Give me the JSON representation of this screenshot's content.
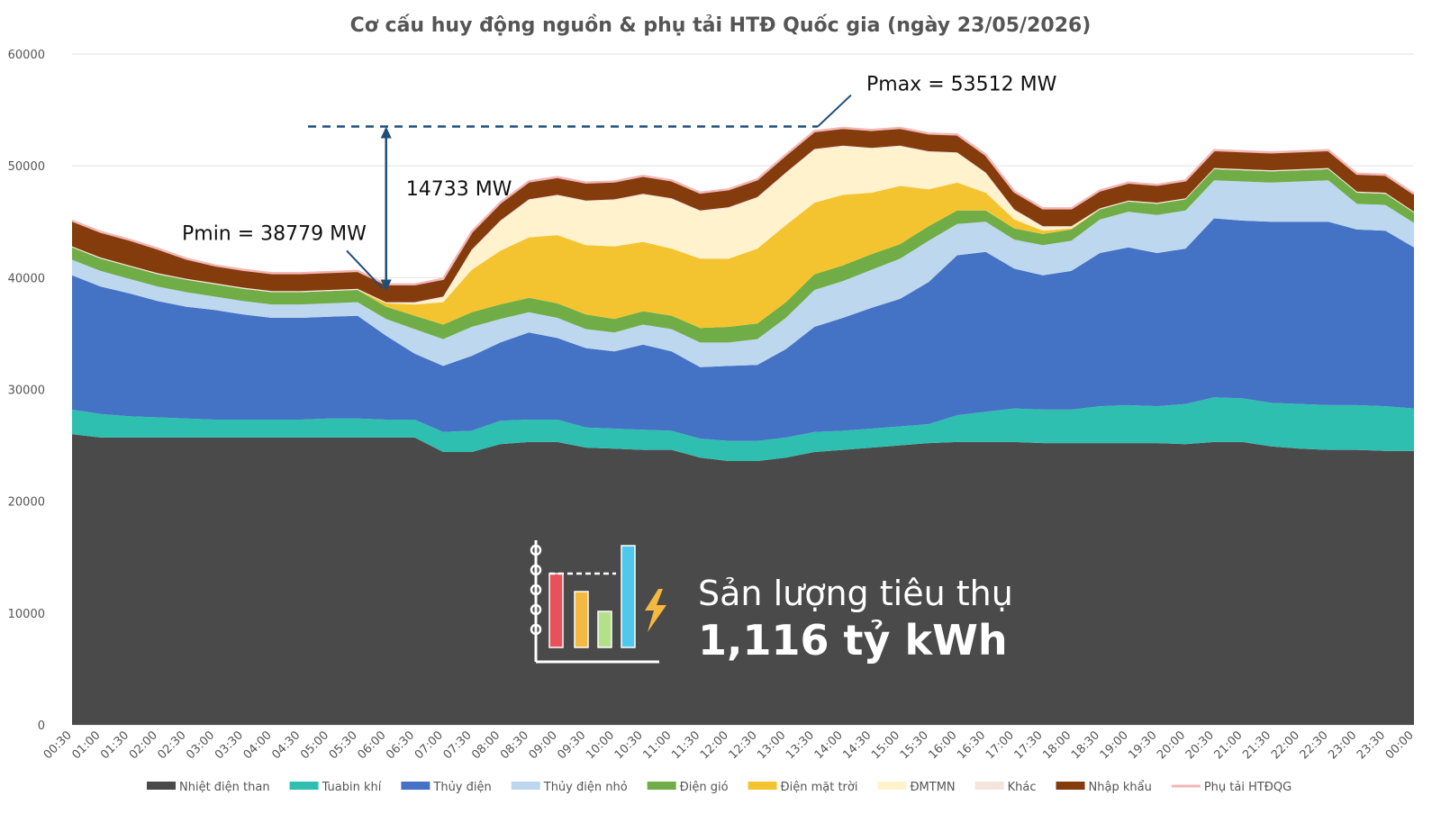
{
  "chart_data": {
    "type": "area",
    "stacked": true,
    "title": "Cơ cấu huy động nguồn & phụ tải HTĐ Quốc gia (ngày 23/05/2026)",
    "xlabel": "",
    "ylabel": "",
    "ylim": [
      0,
      60000
    ],
    "yticks": [
      0,
      10000,
      20000,
      30000,
      40000,
      50000,
      60000
    ],
    "grid": true,
    "legend_position": "bottom",
    "x": [
      "00:30",
      "01:00",
      "01:30",
      "02:00",
      "02:30",
      "03:00",
      "03:30",
      "04:00",
      "04:30",
      "05:00",
      "05:30",
      "06:00",
      "06:30",
      "07:00",
      "07:30",
      "08:00",
      "08:30",
      "09:00",
      "09:30",
      "10:00",
      "10:30",
      "11:00",
      "11:30",
      "12:00",
      "12:30",
      "13:00",
      "13:30",
      "14:00",
      "14:30",
      "15:00",
      "15:30",
      "16:00",
      "16:30",
      "17:00",
      "17:30",
      "18:00",
      "18:30",
      "19:00",
      "19:30",
      "20:00",
      "20:30",
      "21:00",
      "21:30",
      "22:00",
      "22:30",
      "23:00",
      "23:30",
      "00:00"
    ],
    "series": [
      {
        "name": "Nhiệt điện than",
        "color": "#4a4a4a",
        "values": [
          26000,
          25700,
          25700,
          25700,
          25700,
          25700,
          25700,
          25700,
          25700,
          25700,
          25700,
          25700,
          25700,
          24400,
          24400,
          25100,
          25300,
          25300,
          24800,
          24700,
          24600,
          24600,
          23900,
          23600,
          23600,
          23900,
          24400,
          24600,
          24800,
          25000,
          25200,
          25300,
          25300,
          25300,
          25200,
          25200,
          25200,
          25200,
          25200,
          25100,
          25300,
          25300,
          24900,
          24700,
          24600,
          24600,
          24500,
          24500
        ]
      },
      {
        "name": "Tuabin khí",
        "color": "#2fbfb1",
        "values": [
          2200,
          2100,
          1900,
          1800,
          1700,
          1600,
          1600,
          1600,
          1600,
          1700,
          1700,
          1600,
          1600,
          1800,
          1900,
          2100,
          2000,
          2000,
          1800,
          1800,
          1800,
          1700,
          1700,
          1800,
          1800,
          1800,
          1800,
          1700,
          1700,
          1700,
          1700,
          2400,
          2700,
          3000,
          3000,
          3000,
          3300,
          3400,
          3300,
          3600,
          4000,
          3900,
          3900,
          4000,
          4000,
          4000,
          4000,
          3800
        ]
      },
      {
        "name": "Thủy điện",
        "color": "#4472c4",
        "values": [
          12000,
          11400,
          11000,
          10400,
          10000,
          9800,
          9400,
          9100,
          9100,
          9100,
          9200,
          7500,
          5900,
          5900,
          6700,
          7000,
          7800,
          7300,
          7100,
          6900,
          7600,
          7100,
          6400,
          6700,
          6800,
          7900,
          9400,
          10100,
          10800,
          11400,
          12700,
          14300,
          14300,
          12500,
          12000,
          12400,
          13700,
          14100,
          13700,
          13900,
          16000,
          15900,
          16200,
          16300,
          16400,
          15700,
          15700,
          14400
        ]
      },
      {
        "name": "Thủy điện nhỏ",
        "color": "#bdd7ee",
        "values": [
          1400,
          1400,
          1300,
          1300,
          1300,
          1200,
          1200,
          1200,
          1200,
          1200,
          1200,
          1500,
          2200,
          2400,
          2600,
          2100,
          1800,
          1800,
          1700,
          1700,
          1800,
          2000,
          2200,
          2100,
          2300,
          2800,
          3300,
          3300,
          3400,
          3600,
          3700,
          2800,
          2700,
          2600,
          2700,
          2700,
          3000,
          3200,
          3400,
          3400,
          3400,
          3500,
          3500,
          3600,
          3700,
          2300,
          2300,
          2200
        ]
      },
      {
        "name": "Điện gió",
        "color": "#70ad47",
        "values": [
          1100,
          1100,
          1100,
          1100,
          1100,
          1100,
          1100,
          1100,
          1100,
          1100,
          1100,
          1100,
          1200,
          1300,
          1300,
          1300,
          1300,
          1300,
          1300,
          1200,
          1200,
          1200,
          1300,
          1400,
          1400,
          1400,
          1400,
          1400,
          1400,
          1300,
          1300,
          1200,
          1000,
          1000,
          1000,
          1000,
          900,
          900,
          1000,
          1000,
          1000,
          1000,
          1000,
          1000,
          1000,
          1000,
          1000,
          900
        ]
      },
      {
        "name": "Điện mặt trời",
        "color": "#f4c430",
        "values": [
          0,
          0,
          0,
          0,
          0,
          0,
          0,
          0,
          0,
          0,
          0,
          300,
          1000,
          2000,
          3800,
          4800,
          5400,
          6100,
          6200,
          6500,
          6200,
          6000,
          6200,
          6100,
          6700,
          6900,
          6400,
          6300,
          5500,
          5200,
          3300,
          2500,
          1600,
          800,
          300,
          100,
          0,
          0,
          0,
          0,
          0,
          0,
          0,
          0,
          0,
          0,
          0,
          0
        ]
      },
      {
        "name": "ĐMTMN",
        "color": "#fff2cc",
        "values": [
          0,
          0,
          0,
          0,
          0,
          0,
          0,
          0,
          0,
          0,
          0,
          0,
          100,
          400,
          1700,
          2600,
          3300,
          3500,
          3900,
          4100,
          4200,
          4400,
          4200,
          4500,
          4500,
          4600,
          4700,
          4300,
          3900,
          3500,
          3300,
          2600,
          1700,
          800,
          300,
          100,
          0,
          0,
          0,
          0,
          0,
          0,
          0,
          0,
          0,
          0,
          0,
          0
        ]
      },
      {
        "name": "Khác",
        "color": "#f3e5dc",
        "values": [
          100,
          100,
          100,
          100,
          100,
          100,
          100,
          100,
          100,
          100,
          100,
          100,
          100,
          100,
          100,
          100,
          100,
          100,
          100,
          100,
          100,
          100,
          100,
          100,
          100,
          100,
          100,
          100,
          100,
          100,
          100,
          100,
          100,
          100,
          100,
          100,
          100,
          100,
          100,
          100,
          100,
          100,
          100,
          100,
          100,
          100,
          100,
          100
        ]
      },
      {
        "name": "Nhập khẩu",
        "color": "#843c0c",
        "values": [
          2300,
          2300,
          2300,
          2200,
          1800,
          1600,
          1600,
          1600,
          1600,
          1600,
          1600,
          1600,
          1600,
          1600,
          1600,
          1600,
          1600,
          1600,
          1600,
          1600,
          1600,
          1600,
          1600,
          1600,
          1600,
          1600,
          1600,
          1600,
          1600,
          1600,
          1600,
          1600,
          1600,
          1600,
          1600,
          1600,
          1600,
          1600,
          1600,
          1600,
          1600,
          1600,
          1600,
          1600,
          1600,
          1600,
          1600,
          1600
        ]
      },
      {
        "name": "Phụ tải HTĐQG",
        "color": "#f4b6b6",
        "line": true
      }
    ],
    "annotations": {
      "pmax_label": "Pmax = 53512 MW",
      "pmax_value": 53512,
      "pmin_label": "Pmin = 38779 MW",
      "pmin_value": 38779,
      "pmin_time": "06:00",
      "diff_label": "14733 MW"
    },
    "infobox": {
      "line1": "Sản lượng tiêu thụ",
      "line2": "1,116 tỷ kWh",
      "icon": "bar-chart-lightning-icon"
    }
  }
}
